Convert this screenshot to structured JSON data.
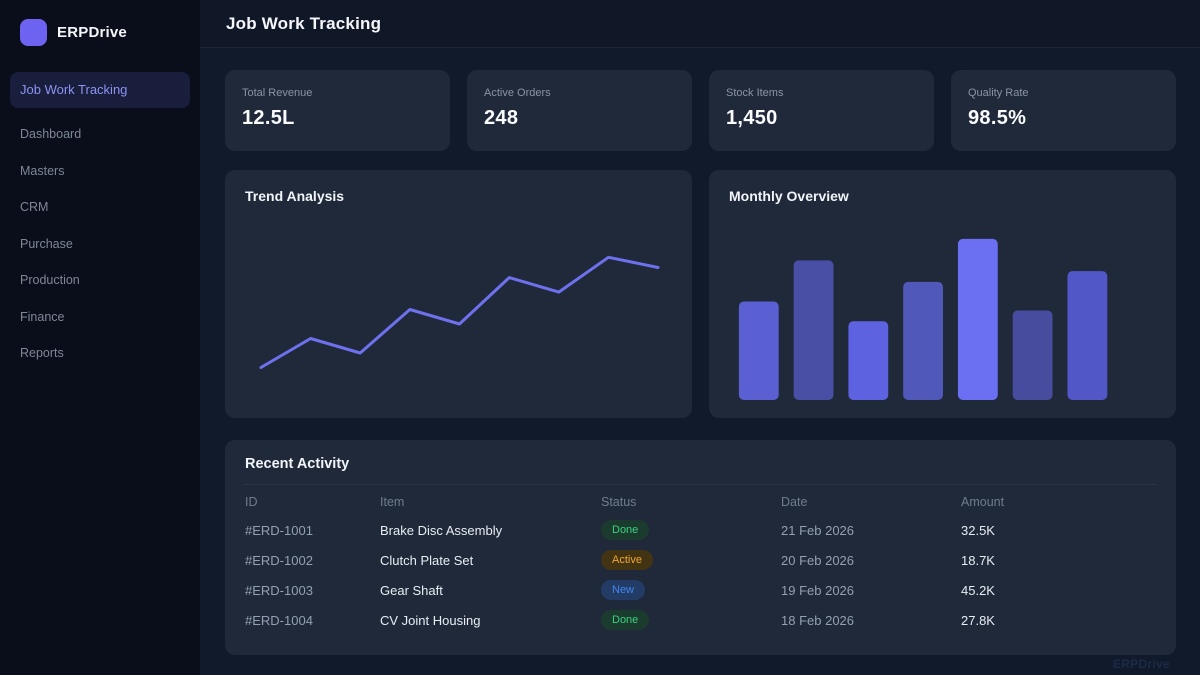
{
  "colors": {
    "accent": "#6e63f1",
    "sidebar_bg": "#0a0e1a",
    "main_bg": "#111a2b",
    "card_bg": "#1f2939",
    "line_color": "#6e71ed",
    "active_nav_bg": "#181e3c",
    "active_nav_text": "#8e93f2"
  },
  "brand": {
    "name": "ERPDrive"
  },
  "sidebar": {
    "items": [
      {
        "label": "Job Work Tracking",
        "active": true
      },
      {
        "label": "Dashboard",
        "active": false
      },
      {
        "label": "Masters",
        "active": false
      },
      {
        "label": "CRM",
        "active": false
      },
      {
        "label": "Purchase",
        "active": false
      },
      {
        "label": "Production",
        "active": false
      },
      {
        "label": "Finance",
        "active": false
      },
      {
        "label": "Reports",
        "active": false
      }
    ]
  },
  "header": {
    "title": "Job Work Tracking"
  },
  "stats": [
    {
      "label": "Total Revenue",
      "value": "12.5L"
    },
    {
      "label": "Active Orders",
      "value": "248"
    },
    {
      "label": "Stock Items",
      "value": "1,450"
    },
    {
      "label": "Quality Rate",
      "value": "98.5%"
    }
  ],
  "chart_data": [
    {
      "type": "line",
      "title": "Trend Analysis",
      "x": [
        1,
        2,
        3,
        4,
        5,
        6,
        7,
        8,
        9
      ],
      "values": [
        10,
        30,
        20,
        50,
        40,
        72,
        62,
        86,
        79
      ],
      "ylim": [
        0,
        100
      ],
      "line_color": "#6e71ed",
      "grid": false,
      "axes_visible": false,
      "legend": "none"
    },
    {
      "type": "bar",
      "title": "Monthly Overview",
      "categories": [
        "1",
        "2",
        "3",
        "4",
        "5",
        "6",
        "7"
      ],
      "values": [
        55,
        78,
        44,
        66,
        90,
        50,
        72
      ],
      "ylim": [
        0,
        100
      ],
      "bar_colors": [
        "#5a5fd1",
        "#4a4fa6",
        "#5d63e0",
        "#5058ba",
        "#6b6ff2",
        "#474c9e",
        "#5257c8"
      ],
      "grid": false,
      "axes_visible": false,
      "legend": "none"
    }
  ],
  "table": {
    "title": "Recent Activity",
    "columns": [
      "ID",
      "Item",
      "Status",
      "Date",
      "Amount"
    ],
    "rows": [
      {
        "id": "#ERD-1001",
        "item": "Brake Disc Assembly",
        "status": "Done",
        "date": "21 Feb 2026",
        "amount": "32.5K"
      },
      {
        "id": "#ERD-1002",
        "item": "Clutch Plate Set",
        "status": "Active",
        "date": "20 Feb 2026",
        "amount": "18.7K"
      },
      {
        "id": "#ERD-1003",
        "item": "Gear Shaft",
        "status": "New",
        "date": "19 Feb 2026",
        "amount": "45.2K"
      },
      {
        "id": "#ERD-1004",
        "item": "CV Joint Housing",
        "status": "Done",
        "date": "18 Feb 2026",
        "amount": "27.8K"
      }
    ],
    "status_styles": {
      "Done": {
        "text": "#3bd37e",
        "bg": "#1a3b2d"
      },
      "Active": {
        "text": "#f2a62e",
        "bg": "#423413"
      },
      "New": {
        "text": "#4186f0",
        "bg": "#233c66"
      }
    }
  },
  "watermark": "ERPDrive"
}
